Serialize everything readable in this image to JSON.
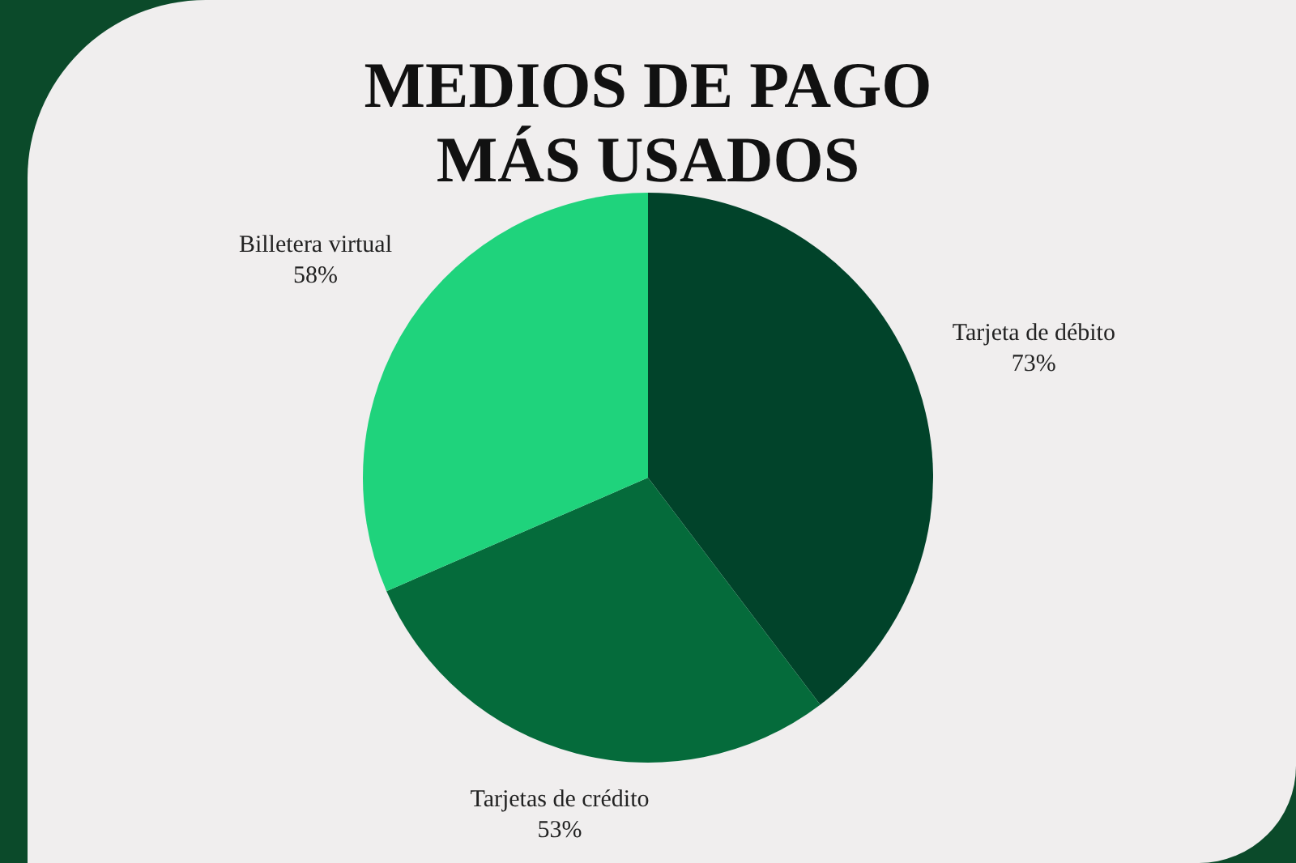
{
  "chart_data": {
    "type": "pie",
    "title": "MEDIOS DE PAGO\nMÁS USADOS",
    "categories": [
      "Tarjeta de débito",
      "Tarjetas de crédito",
      "Billetera virtual"
    ],
    "values": [
      73,
      53,
      58
    ],
    "value_labels": [
      "73%",
      "53%",
      "58%"
    ],
    "colors": [
      "#01432a",
      "#056b3b",
      "#1fd37c"
    ],
    "legend": false
  }
}
